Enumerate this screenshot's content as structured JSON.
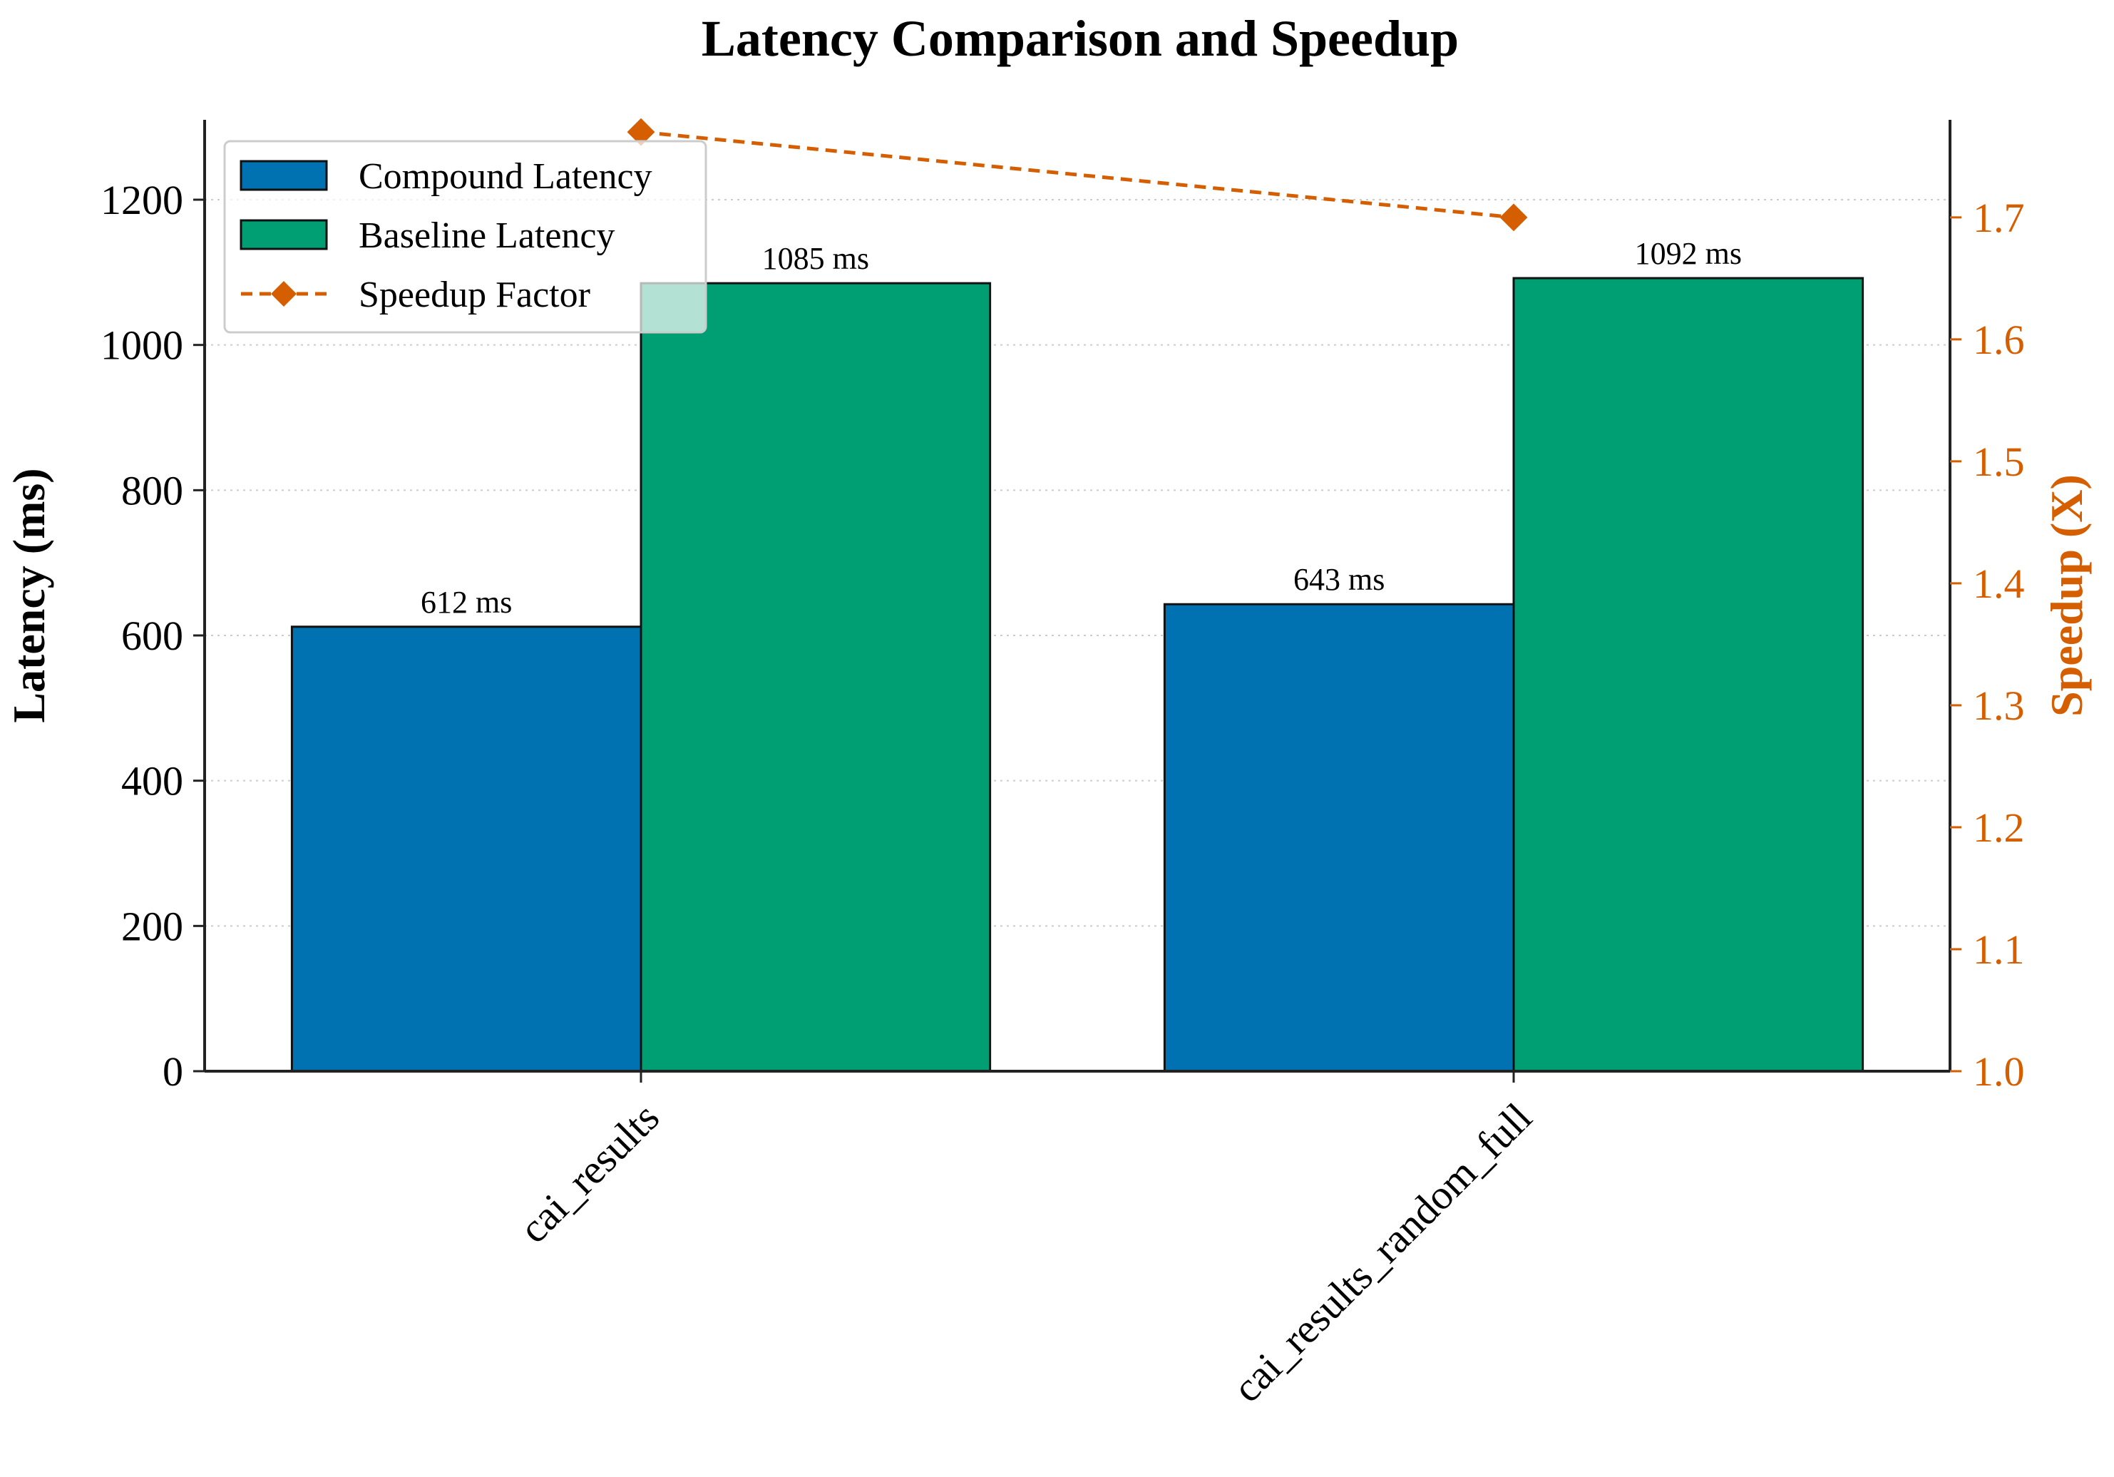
{
  "chart_data": {
    "type": "bar",
    "title": "Latency Comparison and Speedup",
    "categories": [
      "cai_results",
      "cai_results_random_full"
    ],
    "series": [
      {
        "name": "Compound Latency",
        "axis": "left",
        "values": [
          612,
          643
        ],
        "labels": [
          "612 ms",
          "643 ms"
        ],
        "color": "#0072B2"
      },
      {
        "name": "Baseline Latency",
        "axis": "left",
        "values": [
          1085,
          1092
        ],
        "labels": [
          "1085 ms",
          "1092 ms"
        ],
        "color": "#009E73"
      },
      {
        "name": "Speedup Factor",
        "axis": "right",
        "type": "line",
        "style": "dashed",
        "marker": "diamond",
        "values": [
          1.77,
          1.7
        ],
        "color": "#D55E00"
      }
    ],
    "y_left": {
      "label": "Latency (ms)",
      "ylim": [
        0,
        1310
      ],
      "ticks": [
        0,
        200,
        400,
        600,
        800,
        1000,
        1200
      ]
    },
    "y_right": {
      "label": "Speedup (X)",
      "ylim": [
        1.0,
        1.78
      ],
      "ticks": [
        1.0,
        1.1,
        1.2,
        1.3,
        1.4,
        1.5,
        1.6,
        1.7
      ],
      "color": "#D55E00"
    },
    "grid": true,
    "legend": "top-left"
  }
}
